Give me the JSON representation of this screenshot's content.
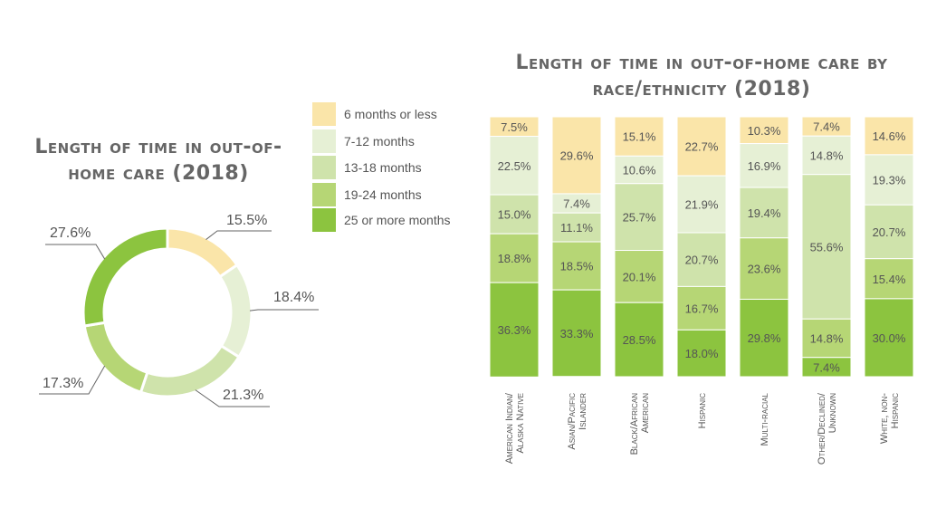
{
  "chart_data": [
    {
      "type": "pie",
      "title": "Length of time in out-of-home care (2018)",
      "categories": [
        "6 months or less",
        "7-12 months",
        "13-18 months",
        "19-24 months",
        "25 or more months"
      ],
      "values": [
        15.5,
        18.4,
        21.3,
        17.3,
        27.6
      ],
      "labels": [
        "15.5%",
        "18.4%",
        "21.3%",
        "17.3%",
        "27.6%"
      ],
      "colors": [
        "#FAE5A9",
        "#E6F0D5",
        "#CFE3AB",
        "#B6D675",
        "#8CC43F"
      ]
    },
    {
      "type": "bar",
      "stacked": true,
      "title": "Length of time in out-of-home care by race/ethnicity (2018)",
      "categories": [
        [
          "American Indian/",
          "Alaska Native"
        ],
        [
          "Asian/Pacific",
          "Islander"
        ],
        [
          "Black/African",
          "American"
        ],
        [
          "Hispanic"
        ],
        [
          "Multi-racial"
        ],
        [
          "Other/Declined/",
          "Unknown"
        ],
        [
          "White, non-",
          "Hispanic"
        ]
      ],
      "ylim": [
        0,
        100
      ],
      "series": [
        {
          "name": "6 months or less",
          "color": "#FAE5A9",
          "values": [
            7.5,
            29.6,
            15.1,
            22.7,
            10.3,
            7.4,
            14.6
          ],
          "labels": [
            "7.5%",
            "29.6%",
            "15.1%",
            "22.7%",
            "10.3%",
            "7.4%",
            "14.6%"
          ]
        },
        {
          "name": "7-12 months",
          "color": "#E6F0D5",
          "values": [
            22.5,
            7.4,
            10.6,
            21.9,
            16.9,
            14.8,
            19.3
          ],
          "labels": [
            "22.5%",
            "7.4%",
            "10.6%",
            "21.9%",
            "16.9%",
            "14.8%",
            "19.3%"
          ]
        },
        {
          "name": "13-18 months",
          "color": "#CFE3AB",
          "values": [
            15.0,
            11.1,
            25.7,
            20.7,
            19.4,
            55.6,
            20.7
          ],
          "labels": [
            "15.0%",
            "11.1%",
            "25.7%",
            "20.7%",
            "19.4%",
            "55.6%",
            "20.7%"
          ]
        },
        {
          "name": "19-24 months",
          "color": "#B6D675",
          "values": [
            18.8,
            18.5,
            20.1,
            16.7,
            23.6,
            14.8,
            15.4
          ],
          "labels": [
            "18.8%",
            "18.5%",
            "20.1%",
            "16.7%",
            "23.6%",
            "14.8%",
            "15.4%"
          ]
        },
        {
          "name": "25 or more months",
          "color": "#8CC43F",
          "values": [
            36.3,
            33.3,
            28.5,
            18.0,
            29.8,
            7.4,
            30.0
          ],
          "labels": [
            "36.3%",
            "33.3%",
            "28.5%",
            "18.0%",
            "29.8%",
            "7.4%",
            "30.0%"
          ]
        }
      ]
    }
  ],
  "legend": {
    "items": [
      {
        "label": "6 months or less",
        "color": "#FAE5A9"
      },
      {
        "label": "7-12 months",
        "color": "#E6F0D5"
      },
      {
        "label": "13-18 months",
        "color": "#CFE3AB"
      },
      {
        "label": "19-24 months",
        "color": "#B6D675"
      },
      {
        "label": "25 or more months",
        "color": "#8CC43F"
      }
    ]
  },
  "titles": {
    "donut": "Length of time in out-of-home care (2018)",
    "bars": "Length of time in out-of-home care by race/ethnicity (2018)"
  }
}
